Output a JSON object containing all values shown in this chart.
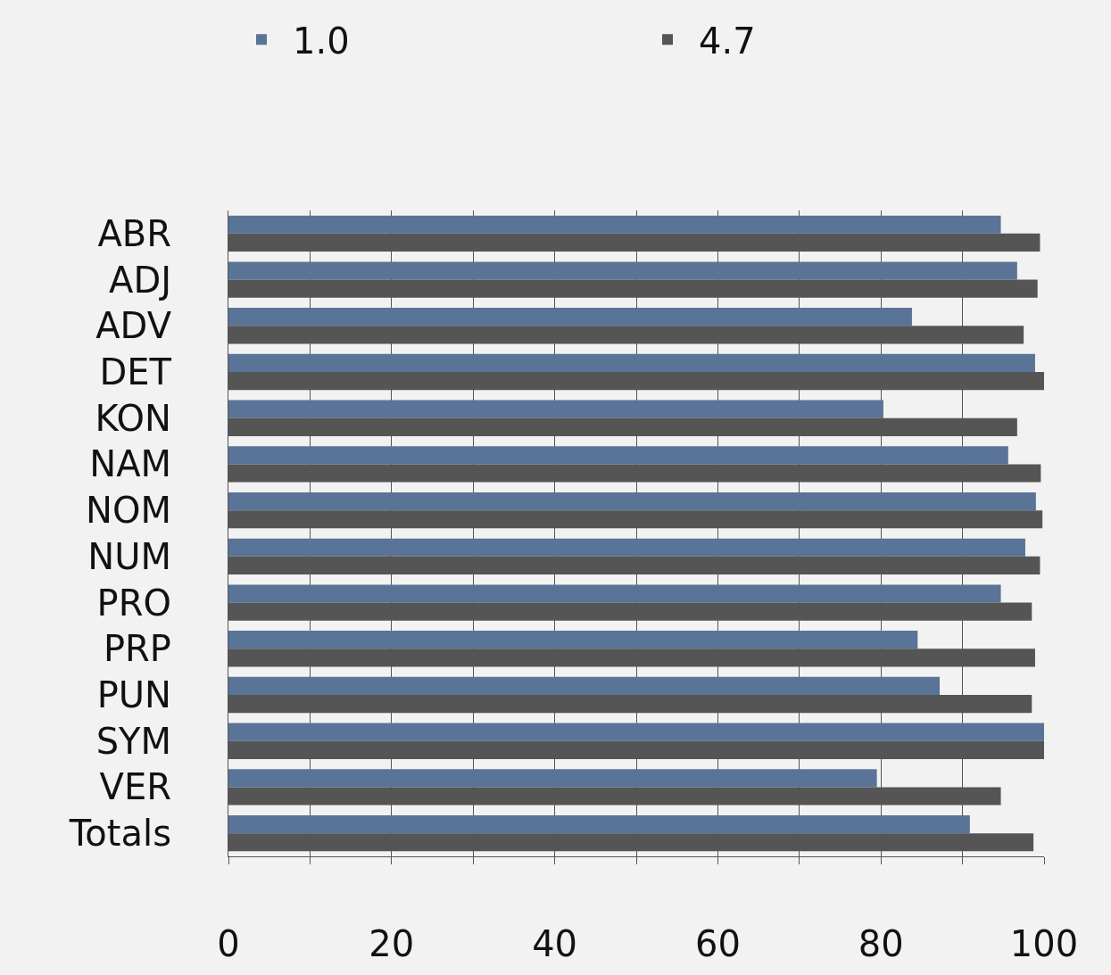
{
  "chart_data": {
    "type": "bar",
    "orientation": "horizontal",
    "categories": [
      "ABR",
      "ADJ",
      "ADV",
      "DET",
      "KON",
      "NAM",
      "NOM",
      "NUM",
      "PRO",
      "PRP",
      "PUN",
      "SYM",
      "VER",
      "Totals"
    ],
    "series": [
      {
        "name": "1.0",
        "color": "#5a7497",
        "values": [
          94.7,
          96.7,
          83.8,
          98.9,
          80.3,
          95.6,
          99.0,
          97.7,
          94.7,
          84.5,
          87.2,
          100,
          79.5,
          90.9
        ]
      },
      {
        "name": "4.7",
        "color": "#555555",
        "values": [
          99.5,
          99.2,
          97.5,
          100,
          96.7,
          99.6,
          99.8,
          99.5,
          98.5,
          98.9,
          98.5,
          100,
          94.7,
          98.7
        ]
      }
    ],
    "xlim": [
      0,
      100
    ],
    "xticks": [
      0,
      {
        "value": 10,
        "label": null
      },
      20,
      {
        "value": 30,
        "label": null
      },
      40,
      {
        "value": 50,
        "label": null
      },
      60,
      {
        "value": 70,
        "label": null
      },
      80,
      {
        "value": 90,
        "label": null
      },
      100
    ],
    "grid": "x",
    "legend": "top"
  }
}
